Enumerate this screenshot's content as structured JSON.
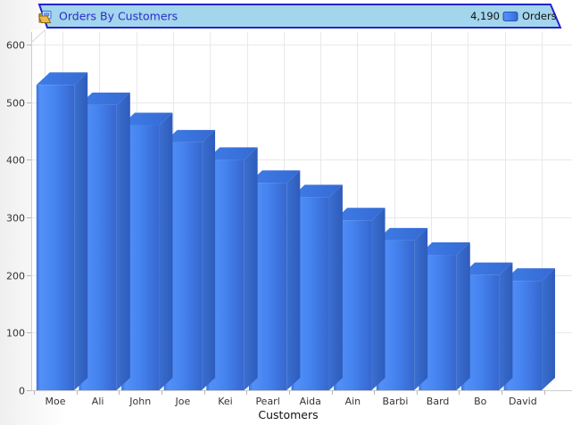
{
  "header": {
    "title": "Orders By Customers",
    "icon": "report-icon",
    "legend": {
      "total": "4,190",
      "series_label": "Orders"
    }
  },
  "chart_data": {
    "type": "bar",
    "style": "3d",
    "title": "Orders By Customers",
    "categories": [
      "Moe",
      "Ali",
      "John",
      "Joe",
      "Kei",
      "Pearl",
      "Aida",
      "Ain",
      "Barbi",
      "Bard",
      "Bo",
      "David"
    ],
    "values": [
      530,
      495,
      460,
      430,
      400,
      360,
      335,
      295,
      260,
      235,
      200,
      190
    ],
    "series": [
      {
        "name": "Orders",
        "total_label": "4,190"
      }
    ],
    "total": 4190,
    "xlabel": "Customers",
    "ylabel": "",
    "ylim": [
      0,
      600
    ],
    "yticks": [
      0,
      100,
      200,
      300,
      400,
      500,
      600
    ],
    "grid": true,
    "legend_position": "top-right"
  },
  "colors": {
    "bar_front": "#4583F0",
    "bar_front_light": "#5390F8",
    "bar_front_edge": "#3C72D8",
    "bar_front_dark": "#3667CE",
    "bar_top": "#3F7DE8",
    "bar_top_dark": "#3569D2",
    "bar_side": "#3A6FD0",
    "bar_side_dark": "#2E5CBB",
    "header_fill": "#A3D5EC",
    "header_border": "#2424CE",
    "title_text": "#2B2BCC",
    "legend_swatch_border": "#2D52B8",
    "grid": "#E9E9E9",
    "axis": "#CCCCCC",
    "tick": "#B5B5B5",
    "label_text": "#333333"
  }
}
